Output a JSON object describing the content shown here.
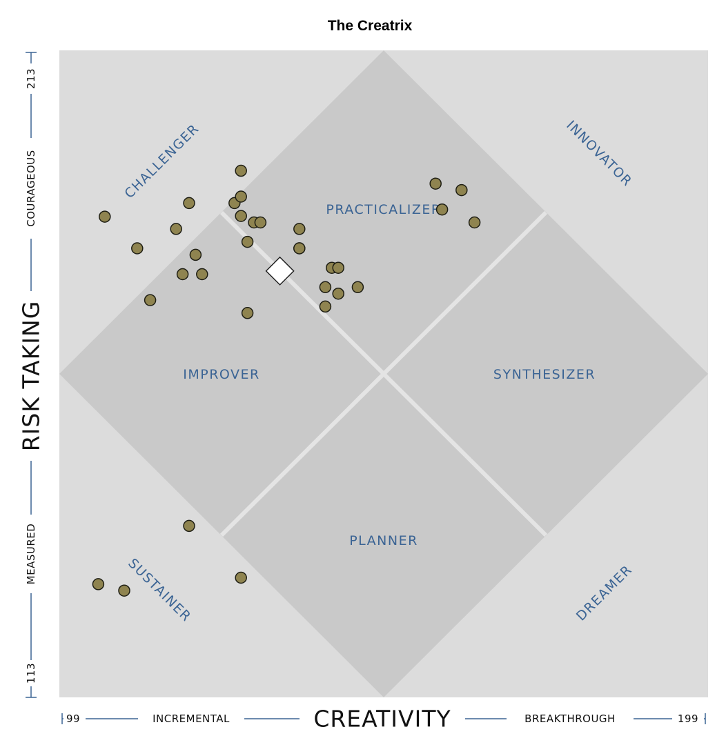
{
  "chart_data": {
    "type": "scatter",
    "title": "The Creatrix",
    "xlabel": "CREATIVITY",
    "ylabel": "RISK TAKING",
    "xlim": [
      99,
      199
    ],
    "ylim": [
      113,
      213
    ],
    "x_range_labels": {
      "min": "99",
      "low": "INCREMENTAL",
      "high": "BREAKTHROUGH",
      "max": "199"
    },
    "y_range_labels": {
      "min": "113",
      "low": "MEASURED",
      "high": "COURAGEOUS",
      "max": "213"
    },
    "zones": {
      "center": [
        "PRACTICALIZER",
        "IMPROVER",
        "SYNTHESIZER",
        "PLANNER"
      ],
      "corners": [
        "CHALLENGER",
        "INNOVATOR",
        "SUSTAINER",
        "DREAMER"
      ]
    },
    "points": [
      [
        106.0,
        187.3
      ],
      [
        113.0,
        174.4
      ],
      [
        128.0,
        172.4
      ],
      [
        105.0,
        130.5
      ],
      [
        109.0,
        129.5
      ],
      [
        111.0,
        182.4
      ],
      [
        117.0,
        185.4
      ],
      [
        126.0,
        189.4
      ],
      [
        127.0,
        187.4
      ],
      [
        121.0,
        178.4
      ],
      [
        129.0,
        186.4
      ],
      [
        128.0,
        183.4
      ],
      [
        119.0,
        189.4
      ],
      [
        127.0,
        190.4
      ],
      [
        127.0,
        194.4
      ],
      [
        136.0,
        185.4
      ],
      [
        120.0,
        181.4
      ],
      [
        118.0,
        178.4
      ],
      [
        119.0,
        139.5
      ],
      [
        130.0,
        186.4
      ],
      [
        136.0,
        182.4
      ],
      [
        141.0,
        179.4
      ],
      [
        142.0,
        179.4
      ],
      [
        140.0,
        173.4
      ],
      [
        140.0,
        176.4
      ],
      [
        142.0,
        175.4
      ],
      [
        145.0,
        176.4
      ],
      [
        127.0,
        131.5
      ],
      [
        136.0,
        182.4
      ],
      [
        157.0,
        192.4
      ],
      [
        158.0,
        188.4
      ],
      [
        161.0,
        191.4
      ],
      [
        163.0,
        186.4
      ]
    ],
    "points_detail": [],
    "marker": {
      "x": 133,
      "y": 178.9,
      "shape": "diamond",
      "color": "#ffffff"
    },
    "colors": {
      "point_fill": "#8f8450",
      "point_stroke": "#1e1e14",
      "outer_background": "#dcdcdc",
      "inner_background": "#c9c9c9",
      "label": "#3b6494"
    },
    "grid": false
  }
}
